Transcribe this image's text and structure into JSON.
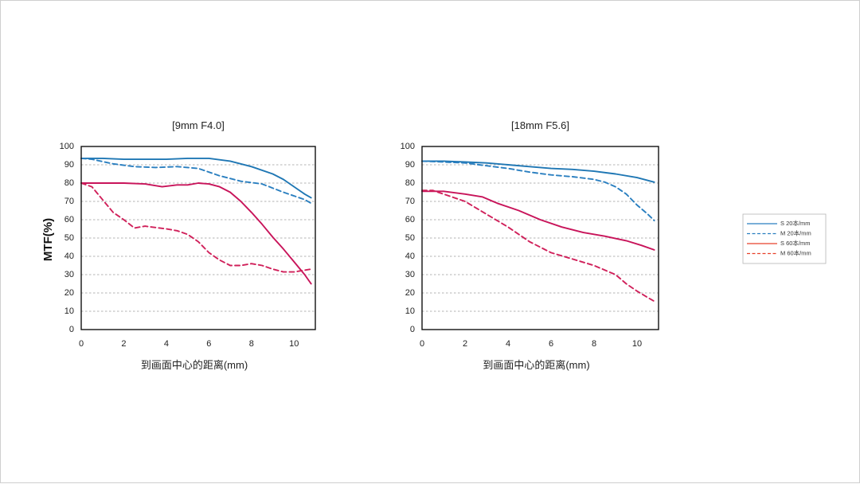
{
  "ylabel": "MTF(%)",
  "colors": {
    "s20": "#1f77b4",
    "m20": "#2a7fc0",
    "s60": "#c8145a",
    "m60": "#d0205a"
  },
  "legend": {
    "items": [
      {
        "key": "s20",
        "label": "S 20本/mm",
        "dashed": false,
        "legend_color": "#2a7fc0"
      },
      {
        "key": "m20",
        "label": "M 20本/mm",
        "dashed": true,
        "legend_color": "#2a7fc0"
      },
      {
        "key": "s60",
        "label": "S 60本/mm",
        "dashed": false,
        "legend_color": "#e8402a"
      },
      {
        "key": "m60",
        "label": "M 60本/mm",
        "dashed": true,
        "legend_color": "#e8402a"
      }
    ]
  },
  "chart_data": [
    {
      "type": "line",
      "title": "[9mm F4.0]",
      "xlabel": "到画面中心的距离(mm)",
      "xlim": [
        0,
        11
      ],
      "ylim": [
        0,
        100
      ],
      "xticks": [
        0,
        2,
        4,
        6,
        8,
        10
      ],
      "yticks": [
        0,
        10,
        20,
        30,
        40,
        50,
        60,
        70,
        80,
        90,
        100
      ],
      "grid": true,
      "series": [
        {
          "name": "S 20本/mm",
          "key": "s20",
          "dashed": false,
          "x": [
            0,
            1,
            2,
            3,
            4,
            5,
            6,
            7,
            8,
            9,
            9.5,
            10,
            10.5,
            10.8
          ],
          "y": [
            93.5,
            93.5,
            93,
            93,
            93,
            93.5,
            93.5,
            92,
            89,
            85,
            82,
            78,
            74,
            72
          ]
        },
        {
          "name": "M 20本/mm",
          "key": "m20",
          "dashed": true,
          "x": [
            0,
            0.5,
            1.5,
            2.5,
            3.5,
            4.5,
            5.5,
            6.5,
            7.5,
            8.5,
            9.5,
            10.5,
            10.8
          ],
          "y": [
            93.5,
            93,
            90.5,
            89,
            88.5,
            89,
            88,
            84,
            81,
            79.5,
            75,
            71,
            69
          ]
        },
        {
          "name": "S 60本/mm",
          "key": "s60",
          "dashed": false,
          "x": [
            0,
            1,
            2,
            3,
            3.8,
            4.5,
            5,
            5.5,
            6,
            6.5,
            7,
            7.5,
            8,
            8.5,
            9,
            9.5,
            10,
            10.5,
            10.8
          ],
          "y": [
            80,
            80,
            80,
            79.5,
            78,
            79,
            79,
            80,
            79.5,
            78,
            75,
            70,
            64,
            57.5,
            50.5,
            44,
            37,
            30,
            25
          ]
        },
        {
          "name": "M 60本/mm",
          "key": "m60",
          "dashed": true,
          "x": [
            0,
            0.5,
            1,
            1.5,
            2,
            2.5,
            3,
            4,
            4.5,
            5,
            5.5,
            6,
            6.5,
            7,
            7.5,
            8,
            8.5,
            9,
            9.5,
            10,
            10.8
          ],
          "y": [
            80,
            78,
            71,
            64,
            60,
            55.5,
            56.5,
            55,
            54,
            52,
            48,
            42,
            38,
            35,
            35,
            36,
            35,
            33,
            31.5,
            31.5,
            33
          ]
        }
      ]
    },
    {
      "type": "line",
      "title": "[18mm F5.6]",
      "xlabel": "到画面中心的距离(mm)",
      "xlim": [
        0,
        11
      ],
      "ylim": [
        0,
        100
      ],
      "xticks": [
        0,
        2,
        4,
        6,
        8,
        10
      ],
      "yticks": [
        0,
        10,
        20,
        30,
        40,
        50,
        60,
        70,
        80,
        90,
        100
      ],
      "grid": true,
      "series": [
        {
          "name": "S 20本/mm",
          "key": "s20",
          "dashed": false,
          "x": [
            0,
            1,
            2,
            3,
            4,
            5,
            6,
            7,
            8,
            9,
            10,
            10.8
          ],
          "y": [
            92,
            92,
            91.5,
            91,
            90,
            89,
            88,
            87.5,
            86.5,
            85,
            83,
            80.5
          ]
        },
        {
          "name": "M 20本/mm",
          "key": "m20",
          "dashed": true,
          "x": [
            0,
            1,
            2,
            3,
            4,
            5,
            6,
            7,
            8,
            8.5,
            9,
            9.5,
            10,
            10.5,
            10.8
          ],
          "y": [
            92,
            91.5,
            91,
            89.5,
            88,
            86,
            84.5,
            83.5,
            82,
            80.5,
            78,
            74,
            68,
            63,
            59.5
          ]
        },
        {
          "name": "S 60本/mm",
          "key": "s60",
          "dashed": false,
          "x": [
            0,
            1,
            2,
            2.8,
            3.5,
            4.5,
            5.5,
            6.5,
            7.5,
            8.5,
            9.5,
            10.2,
            10.8
          ],
          "y": [
            75.5,
            75.5,
            74,
            72.5,
            69,
            65,
            60,
            56,
            53,
            51,
            48.5,
            46,
            43.5
          ]
        },
        {
          "name": "M 60本/mm",
          "key": "m60",
          "dashed": true,
          "x": [
            0,
            0.5,
            1,
            2,
            3,
            4,
            5,
            6,
            7,
            8,
            8.5,
            9,
            9.5,
            10,
            10.5,
            10.8
          ],
          "y": [
            76,
            76,
            74,
            70,
            63,
            56,
            48,
            42,
            38.5,
            35,
            32.5,
            30,
            25,
            21,
            17.5,
            15.5
          ]
        }
      ]
    }
  ]
}
